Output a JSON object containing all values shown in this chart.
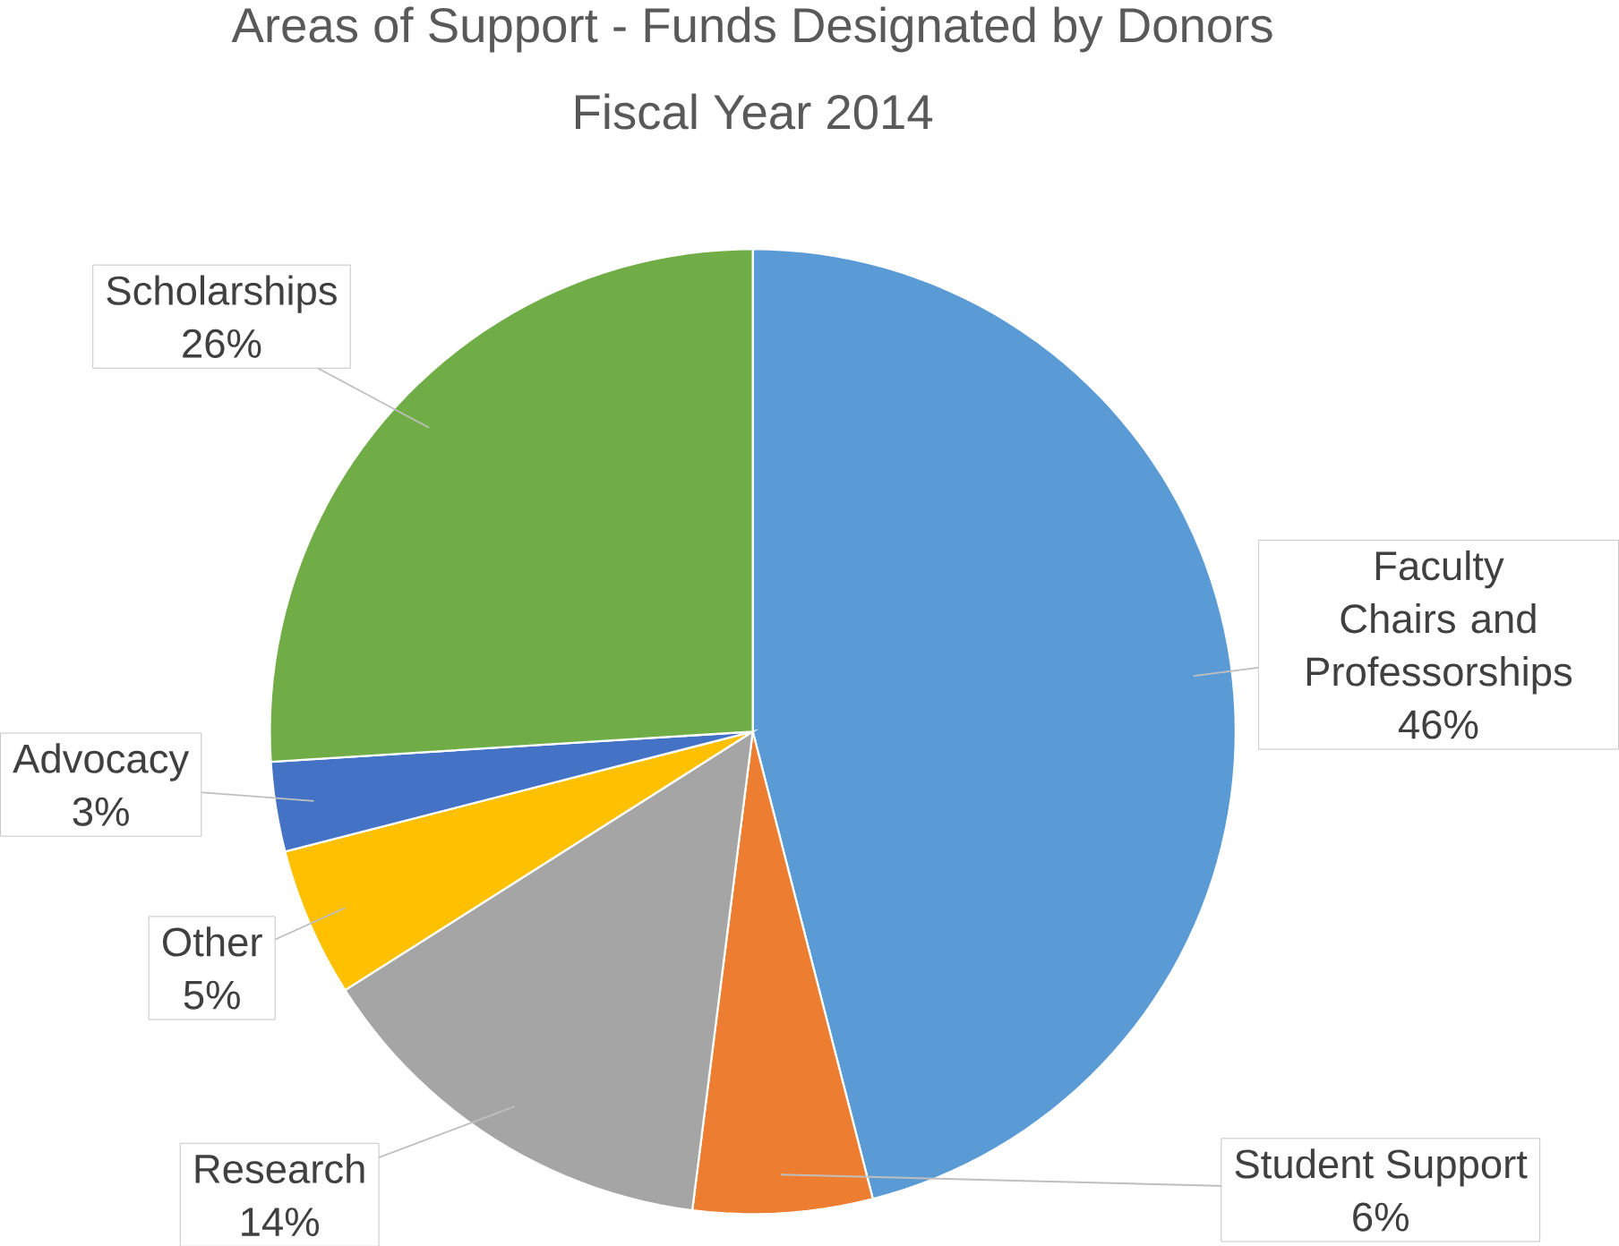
{
  "chart_data": {
    "type": "pie",
    "title": "Areas of Support - Funds Designated by Donors",
    "subtitle": "Fiscal Year 2014",
    "categories": [
      "Faculty Chairs and Professorships",
      "Student Support",
      "Research",
      "Other",
      "Advocacy",
      "Scholarships"
    ],
    "values": [
      46,
      6,
      14,
      5,
      3,
      26
    ],
    "colors": [
      "#5b9bd5",
      "#ed7d31",
      "#a5a5a5",
      "#ffc000",
      "#4472c4",
      "#70ad47"
    ],
    "value_labels": [
      "46%",
      "6%",
      "14%",
      "5%",
      "3%",
      "26%"
    ]
  }
}
